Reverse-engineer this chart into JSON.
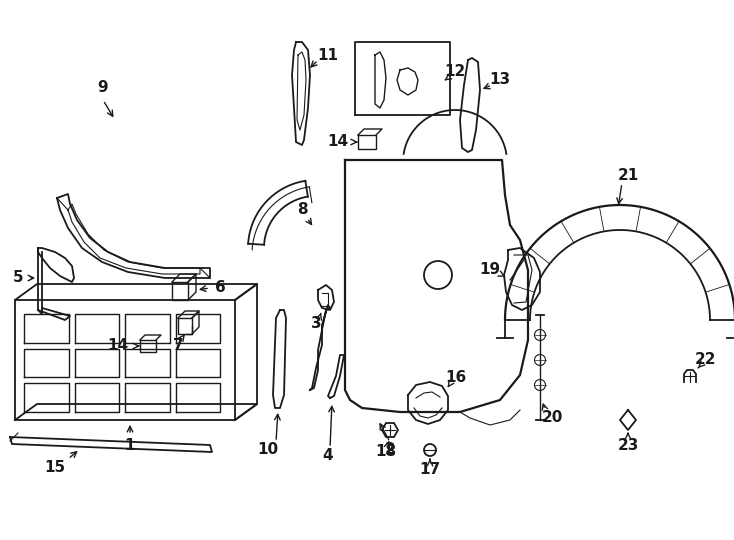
{
  "background_color": "#ffffff",
  "line_color": "#1a1a1a",
  "fig_width": 7.34,
  "fig_height": 5.4,
  "dpi": 100
}
